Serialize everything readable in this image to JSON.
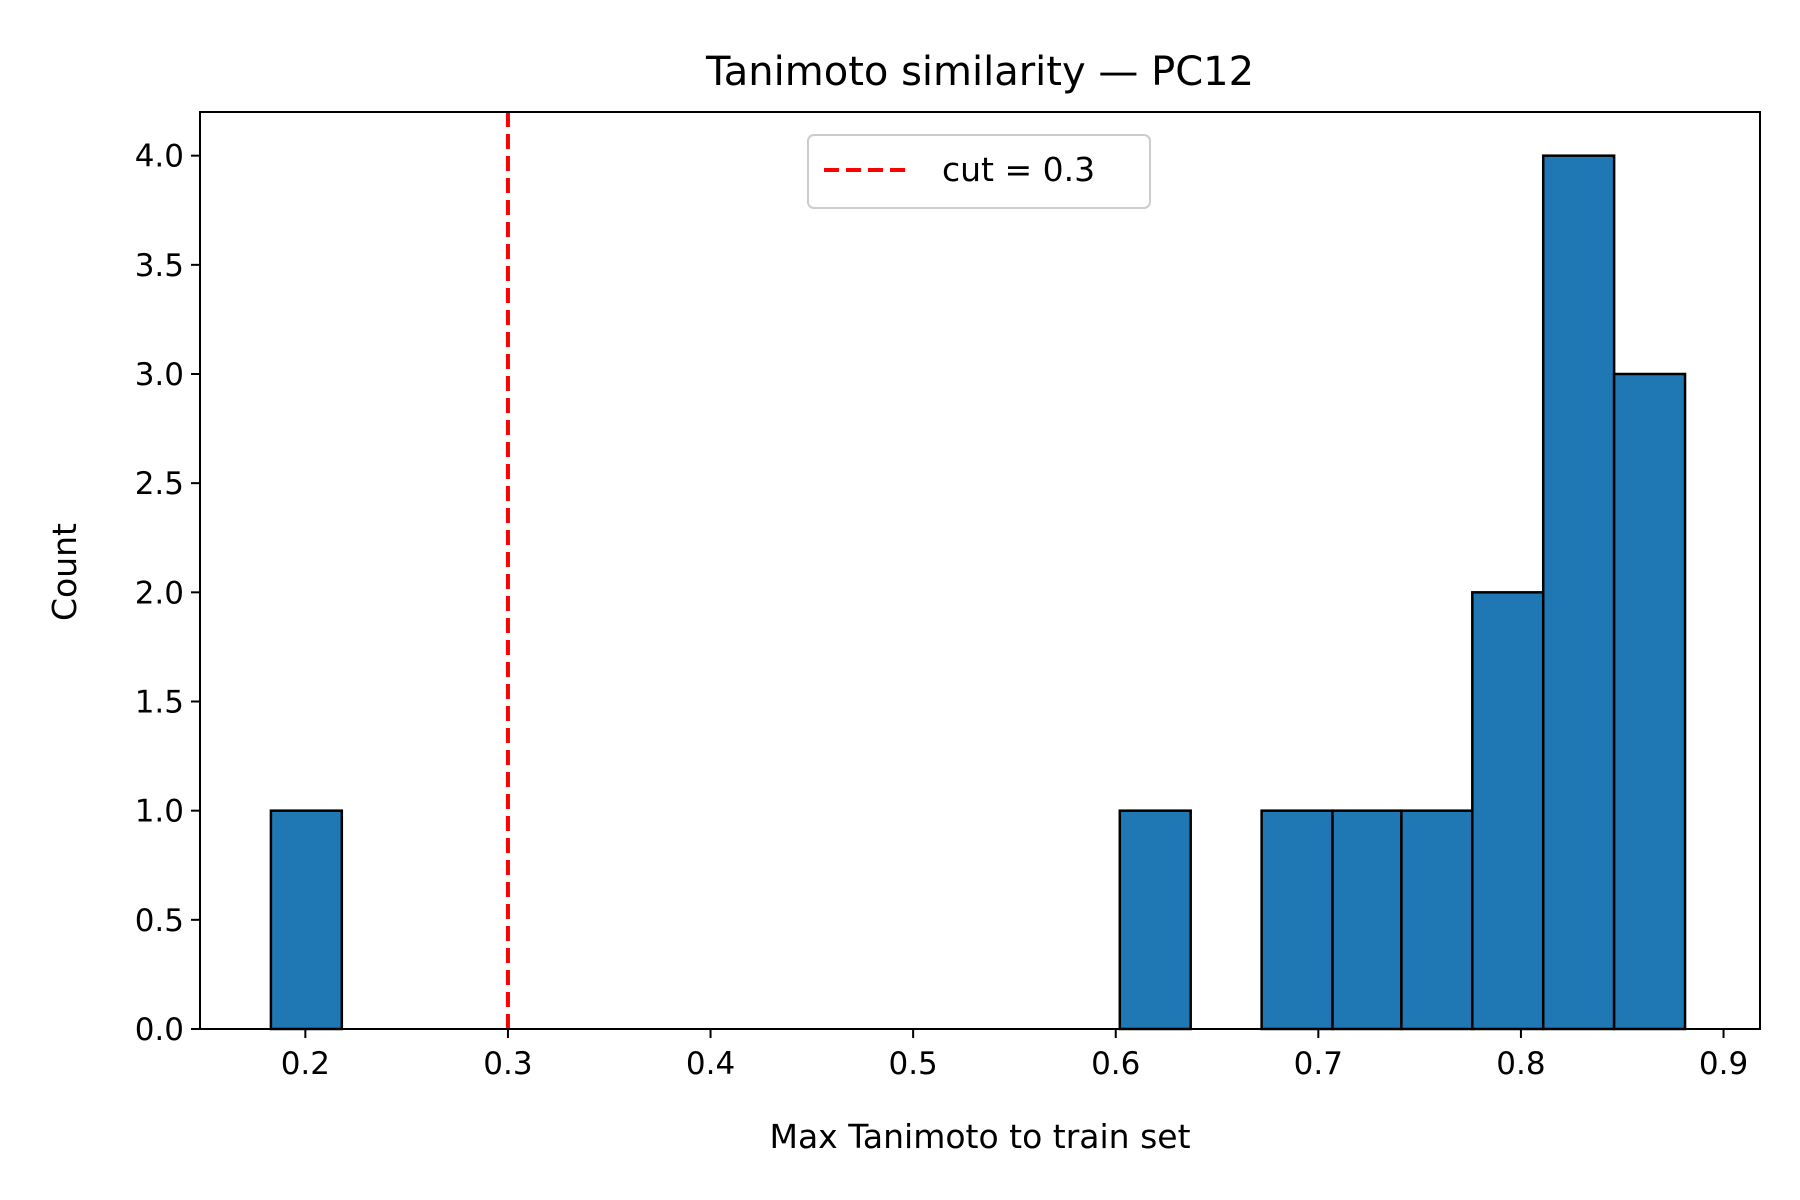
{
  "chart_data": {
    "type": "bar",
    "subtype": "histogram",
    "title": "Tanimoto similarity — PC12",
    "xlabel": "Max Tanimoto to train set",
    "ylabel": "Count",
    "xlim": [
      0.148,
      0.918
    ],
    "ylim": [
      0,
      4.2
    ],
    "xticks": [
      0.2,
      0.3,
      0.4,
      0.5,
      0.6,
      0.7,
      0.8,
      0.9
    ],
    "xtick_labels": [
      "0.2",
      "0.3",
      "0.4",
      "0.5",
      "0.6",
      "0.7",
      "0.8",
      "0.9"
    ],
    "yticks": [
      0.0,
      0.5,
      1.0,
      1.5,
      2.0,
      2.5,
      3.0,
      3.5,
      4.0
    ],
    "ytick_labels": [
      "0.0",
      "0.5",
      "1.0",
      "1.5",
      "2.0",
      "2.5",
      "3.0",
      "3.5",
      "4.0"
    ],
    "bin_edges": [
      0.183,
      0.218,
      0.253,
      0.288,
      0.323,
      0.358,
      0.392,
      0.427,
      0.462,
      0.497,
      0.532,
      0.567,
      0.602,
      0.637,
      0.672,
      0.707,
      0.741,
      0.776,
      0.811,
      0.846,
      0.881
    ],
    "counts": [
      1,
      0,
      0,
      0,
      0,
      0,
      0,
      0,
      0,
      0,
      0,
      0,
      1,
      0,
      1,
      1,
      1,
      2,
      4,
      3
    ],
    "bar_color": "#1f77b4",
    "bar_edge_color": "#000000",
    "grid": false,
    "reference_lines": [
      {
        "orientation": "vertical",
        "x": 0.3,
        "color": "#ff0000",
        "style": "dashed",
        "label": "cut = 0.3"
      }
    ],
    "legend": {
      "position": "upper-center",
      "entries": [
        "cut = 0.3"
      ]
    }
  }
}
